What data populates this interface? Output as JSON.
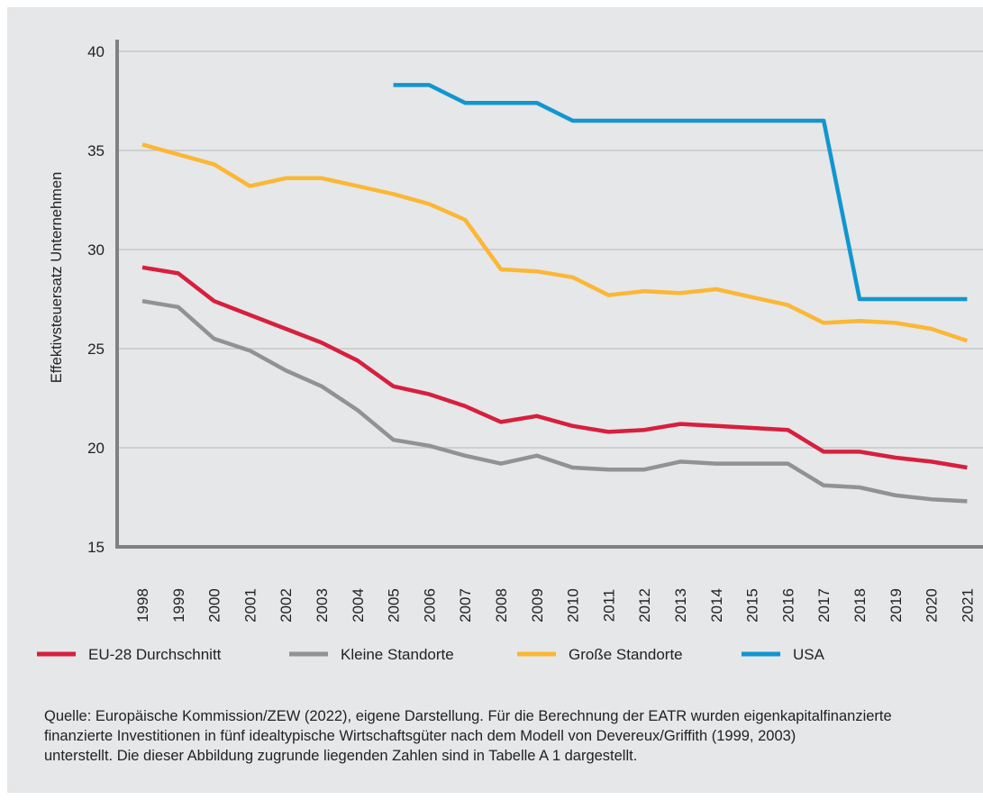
{
  "colors": {
    "background": "#e6e7e8",
    "grid": "#c6c7c9",
    "axis": "#808184"
  },
  "chart_data": {
    "type": "line",
    "title": "",
    "xlabel": "",
    "ylabel": "Effektivsteuersatz Unternehmen",
    "ylim": [
      15,
      40
    ],
    "yticks": [
      "15",
      "20",
      "25",
      "30",
      "35",
      "40"
    ],
    "grid": true,
    "legend_position": "bottom",
    "x": [
      "1998",
      "1999",
      "2000",
      "2001",
      "2002",
      "2003",
      "2004",
      "2005",
      "2006",
      "2007",
      "2008",
      "2009",
      "2010",
      "2011",
      "2012",
      "2013",
      "2014",
      "2015",
      "2016",
      "2017",
      "2018",
      "2019",
      "2020",
      "2021"
    ],
    "series": [
      {
        "name": "EU-28 Durchschnitt",
        "color": "#d71f3e",
        "values": [
          29.1,
          28.8,
          27.4,
          26.7,
          26.0,
          25.3,
          24.4,
          23.1,
          22.7,
          22.1,
          21.3,
          21.6,
          21.1,
          20.8,
          20.9,
          21.2,
          21.1,
          21.0,
          20.9,
          19.8,
          19.8,
          19.5,
          19.3,
          19.0
        ]
      },
      {
        "name": "Kleine Standorte",
        "color": "#919295",
        "values": [
          27.4,
          27.1,
          25.5,
          24.9,
          23.9,
          23.1,
          21.9,
          20.4,
          20.1,
          19.6,
          19.2,
          19.6,
          19.0,
          18.9,
          18.9,
          19.3,
          19.2,
          19.2,
          19.2,
          18.1,
          18.0,
          17.6,
          17.4,
          17.3
        ]
      },
      {
        "name": "Große Standorte",
        "color": "#fbb735",
        "values": [
          35.3,
          34.8,
          34.3,
          33.2,
          33.6,
          33.6,
          33.2,
          32.8,
          32.3,
          31.5,
          29.0,
          28.9,
          28.6,
          27.7,
          27.9,
          27.8,
          28.0,
          27.6,
          27.2,
          26.3,
          26.4,
          26.3,
          26.0,
          25.4
        ]
      },
      {
        "name": "USA",
        "color": "#1196cf",
        "values": [
          null,
          null,
          null,
          null,
          null,
          null,
          null,
          38.3,
          38.3,
          37.4,
          37.4,
          37.4,
          36.5,
          36.5,
          36.5,
          36.5,
          36.5,
          36.5,
          36.5,
          36.5,
          27.5,
          27.5,
          27.5,
          27.5
        ]
      }
    ]
  },
  "source_text": "Quelle: Europäische Kommission/ZEW (2022), eigene Darstellung. Für die Berechnung der EATR wurden eigenkapitalfinanzierte\nfinanzierte Investitionen in fünf idealtypische Wirtschaftsgüter nach dem Modell von Devereux/Griffith (1999, 2003)\nunterstellt. Die dieser Abbildung zugrunde liegenden Zahlen sind in Tabelle A 1 dargestellt."
}
